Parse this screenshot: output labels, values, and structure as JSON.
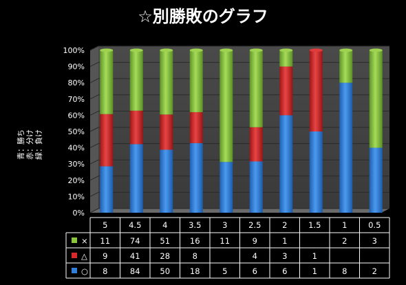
{
  "chart_data": {
    "type": "bar",
    "stacked": "percent",
    "title": "☆別勝敗のグラフ",
    "ylabel_lines": [
      "青：勝ち",
      "赤：分け",
      "緑：負け"
    ],
    "y_ticks": [
      "0%",
      "10%",
      "20%",
      "30%",
      "40%",
      "50%",
      "60%",
      "70%",
      "80%",
      "90%",
      "100%"
    ],
    "ylim": [
      0,
      100
    ],
    "categories": [
      "5",
      "4.5",
      "4",
      "3.5",
      "3",
      "2.5",
      "2",
      "1.5",
      "1",
      "0.5"
    ],
    "series": [
      {
        "name": "○",
        "color": "#2f7fd8",
        "values": [
          8,
          84,
          50,
          18,
          5,
          6,
          6,
          1,
          8,
          2
        ]
      },
      {
        "name": "△",
        "color": "#d42a2a",
        "values": [
          9,
          41,
          28,
          8,
          null,
          4,
          3,
          1,
          null,
          null
        ]
      },
      {
        "name": "×",
        "color": "#8cc63e",
        "values": [
          11,
          74,
          51,
          16,
          11,
          9,
          1,
          null,
          2,
          3
        ]
      }
    ],
    "table_rows_order": [
      "×",
      "△",
      "○"
    ],
    "grid": true
  }
}
